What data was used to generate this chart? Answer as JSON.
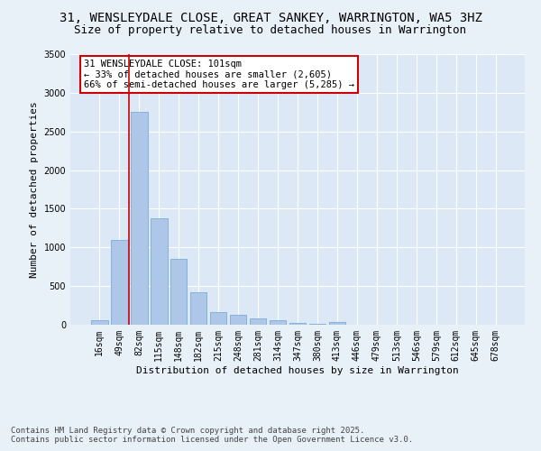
{
  "title_line1": "31, WENSLEYDALE CLOSE, GREAT SANKEY, WARRINGTON, WA5 3HZ",
  "title_line2": "Size of property relative to detached houses in Warrington",
  "xlabel": "Distribution of detached houses by size in Warrington",
  "ylabel": "Number of detached properties",
  "categories": [
    "16sqm",
    "49sqm",
    "82sqm",
    "115sqm",
    "148sqm",
    "182sqm",
    "215sqm",
    "248sqm",
    "281sqm",
    "314sqm",
    "347sqm",
    "380sqm",
    "413sqm",
    "446sqm",
    "479sqm",
    "513sqm",
    "546sqm",
    "579sqm",
    "612sqm",
    "645sqm",
    "678sqm"
  ],
  "values": [
    60,
    1100,
    2750,
    1380,
    850,
    420,
    165,
    130,
    85,
    55,
    20,
    10,
    40,
    5,
    3,
    2,
    2,
    1,
    1,
    1,
    1
  ],
  "bar_color": "#aec6e8",
  "bar_edge_color": "#7aadd4",
  "vline_x_index": 1.5,
  "vline_color": "#cc0000",
  "annotation_title": "31 WENSLEYDALE CLOSE: 101sqm",
  "annotation_line2": "← 33% of detached houses are smaller (2,605)",
  "annotation_line3": "66% of semi-detached houses are larger (5,285) →",
  "annotation_box_color": "#cc0000",
  "annotation_bg": "#ffffff",
  "ylim": [
    0,
    3500
  ],
  "yticks": [
    0,
    500,
    1000,
    1500,
    2000,
    2500,
    3000,
    3500
  ],
  "footnote_line1": "Contains HM Land Registry data © Crown copyright and database right 2025.",
  "footnote_line2": "Contains public sector information licensed under the Open Government Licence v3.0.",
  "bg_color": "#e8f0f8",
  "plot_bg_color": "#dce8f5",
  "grid_color": "#ffffff",
  "title_fontsize": 10,
  "subtitle_fontsize": 9,
  "axis_label_fontsize": 8,
  "tick_fontsize": 7,
  "footnote_fontsize": 6.5,
  "annotation_fontsize": 7.5
}
